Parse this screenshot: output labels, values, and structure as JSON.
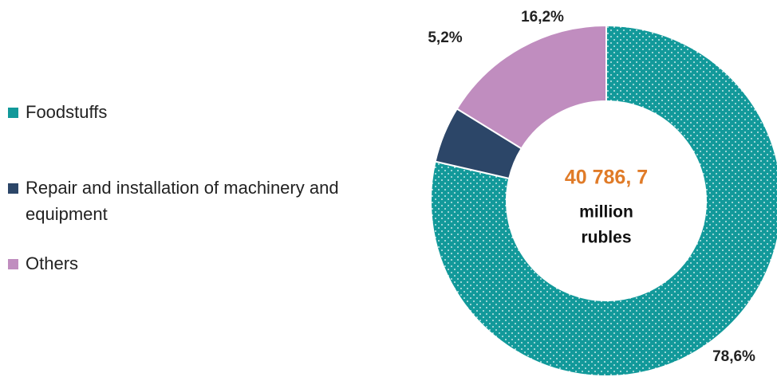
{
  "chart_data": {
    "type": "donut",
    "categories": [
      "Foodstuffs",
      "Repair and installation of machinery and equipment",
      "Others"
    ],
    "values": [
      78.6,
      5.2,
      16.2
    ],
    "value_labels": [
      "78,6%",
      "5,2%",
      "16,2%"
    ],
    "colors": [
      "#12999a",
      "#2c4668",
      "#c08dbf"
    ],
    "center_value": "40 786, 7",
    "center_unit": [
      "million",
      "rubles"
    ],
    "legend": "left"
  }
}
